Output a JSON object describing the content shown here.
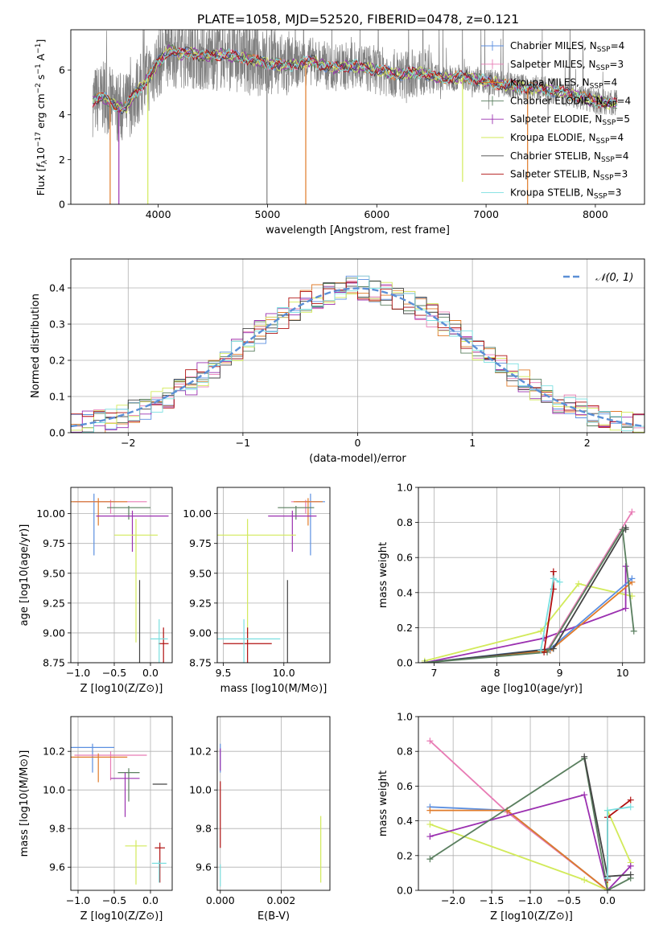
{
  "figure": {
    "title": "PLATE=1058, MJD=52520, FIBERID=0478, z=0.121"
  },
  "colors": {
    "chabrier_miles": "#5b8fe0",
    "salpeter_miles": "#e87cb5",
    "kroupa_miles": "#e07b2a",
    "chabrier_elodie": "#5a7f5f",
    "salpeter_elodie": "#9b30b0",
    "kroupa_elodie": "#d2ea5a",
    "chabrier_stelib": "#444444",
    "salpeter_stelib": "#b01010",
    "kroupa_stelib": "#7adfe0",
    "data": "#808080"
  },
  "chart_data": [
    {
      "id": "spectrum",
      "type": "line",
      "xlabel": "wavelength [Angstrom, rest frame]",
      "ylabel": "Flux [f_λ10^−17 erg cm^−2 s^−1 A^−1]",
      "xlim": [
        3200,
        8450
      ],
      "ylim": [
        0,
        7.8
      ],
      "xticks": [
        4000,
        5000,
        6000,
        7000,
        8000
      ],
      "yticks": [
        0,
        2,
        4,
        6
      ],
      "legend_position": "right",
      "legend": [
        {
          "key": "chabrier_miles",
          "label": "Chabrier MILES, N",
          "sub": "SSP",
          "suffix": "=4",
          "marker": "|"
        },
        {
          "key": "salpeter_miles",
          "label": "Salpeter MILES, N",
          "sub": "SSP",
          "suffix": "=3",
          "marker": "|"
        },
        {
          "key": "kroupa_miles",
          "label": "Kroupa MILES, N",
          "sub": "SSP",
          "suffix": "=4",
          "marker": "|"
        },
        {
          "key": "chabrier_elodie",
          "label": "Chabrier ELODIE, N",
          "sub": "SSP",
          "suffix": "=4",
          "marker": "|"
        },
        {
          "key": "salpeter_elodie",
          "label": "Salpeter ELODIE, N",
          "sub": "SSP",
          "suffix": "=5",
          "marker": "+"
        },
        {
          "key": "kroupa_elodie",
          "label": "Kroupa ELODIE, N",
          "sub": "SSP",
          "suffix": "=4",
          "marker": ""
        },
        {
          "key": "chabrier_stelib",
          "label": "Chabrier STELIB, N",
          "sub": "SSP",
          "suffix": "=4",
          "marker": ""
        },
        {
          "key": "salpeter_stelib",
          "label": "Salpeter STELIB, N",
          "sub": "SSP",
          "suffix": "=3",
          "marker": ""
        },
        {
          "key": "kroupa_stelib",
          "label": "Kroupa STELIB, N",
          "sub": "SSP",
          "suffix": "=3",
          "marker": ""
        }
      ],
      "continuum_model": {
        "x": [
          3400,
          3500,
          3600,
          3700,
          3800,
          3900,
          4000,
          4100,
          4200,
          4300,
          4400,
          4600,
          4800,
          5000,
          5200,
          5400,
          5600,
          5800,
          6000,
          6200,
          6400,
          6600,
          6800,
          7000,
          7200,
          7400,
          7600,
          7800,
          8000,
          8200
        ],
        "y": [
          4.6,
          4.8,
          4.4,
          4.3,
          5.0,
          5.6,
          6.3,
          6.9,
          6.7,
          6.8,
          6.6,
          6.7,
          6.5,
          6.3,
          6.2,
          6.4,
          6.1,
          6.2,
          6.0,
          5.8,
          5.9,
          5.6,
          5.7,
          5.5,
          5.3,
          5.2,
          5.1,
          4.9,
          4.6,
          4.5
        ]
      },
      "spikes_down": [
        {
          "x": 3560,
          "y": 0
        },
        {
          "x": 3640,
          "y": 0
        },
        {
          "x": 3905,
          "y": 0
        },
        {
          "x": 4995,
          "y": 0
        },
        {
          "x": 5350,
          "y": 0
        },
        {
          "x": 6785,
          "y": 1.0
        },
        {
          "x": 7380,
          "y": 0
        }
      ]
    },
    {
      "id": "residuals",
      "type": "line",
      "xlabel": "(data-model)/error",
      "ylabel": "Normed distribution",
      "xlim": [
        -2.5,
        2.5
      ],
      "ylim": [
        0,
        0.48
      ],
      "xticks": [
        -2,
        -1,
        0,
        1,
        2
      ],
      "yticks": [
        0.0,
        0.1,
        0.2,
        0.3,
        0.4
      ],
      "legend_position": "top-right",
      "gaussian_label": "𝒩(0, 1)",
      "gaussian": {
        "mean": 0,
        "sigma": 1
      }
    },
    {
      "id": "age_vs_Z",
      "type": "scatter",
      "xlabel": "Z [log10(Z/Z⊙)]",
      "ylabel": "age  [log10(age/yr)]",
      "xlim": [
        -1.1,
        0.3
      ],
      "ylim": [
        8.75,
        10.22
      ],
      "xticks": [
        -1.0,
        -0.5,
        0.0
      ],
      "xtick_labels": [
        "−1.0",
        "−0.5",
        "0.0"
      ],
      "yticks": [
        8.75,
        9.0,
        9.25,
        9.5,
        9.75,
        10.0
      ],
      "ytick_labels": [
        "8.75",
        "9.00",
        "9.25",
        "9.50",
        "9.75",
        "10.00"
      ],
      "points": [
        {
          "key": "chabrier_miles",
          "x": -0.78,
          "y": 10.1,
          "xerr": 0.3,
          "yerr": 0.45
        },
        {
          "key": "salpeter_miles",
          "x": -0.55,
          "y": 10.1,
          "xerr": 0.5,
          "yerr": 0.1
        },
        {
          "key": "kroupa_miles",
          "x": -0.72,
          "y": 10.1,
          "xerr": 0.4,
          "yerr": 0.2
        },
        {
          "key": "chabrier_elodie",
          "x": -0.3,
          "y": 10.05,
          "xerr": 0.3,
          "yerr": 0.1
        },
        {
          "key": "salpeter_elodie",
          "x": -0.25,
          "y": 9.98,
          "xerr": 0.5,
          "yerr": 0.3
        },
        {
          "key": "kroupa_elodie",
          "x": -0.2,
          "y": 9.82,
          "xerr": 0.3,
          "yerr": 0.9
        },
        {
          "key": "chabrier_stelib",
          "x": -0.15,
          "y": 9.3,
          "xerr": 0.0,
          "yerr": 0.95
        },
        {
          "key": "salpeter_stelib",
          "x": 0.18,
          "y": 8.91,
          "xerr": 0.07,
          "yerr": 0.9
        },
        {
          "key": "kroupa_stelib",
          "x": 0.12,
          "y": 8.95,
          "xerr": 0.12,
          "yerr": 1.1
        }
      ]
    },
    {
      "id": "age_vs_mass",
      "type": "scatter",
      "xlabel": "mass [log10(M/M⊙)]",
      "xlim": [
        9.45,
        10.38
      ],
      "ylim": [
        8.75,
        10.22
      ],
      "xticks": [
        9.5,
        10.0
      ],
      "xtick_labels": [
        "9.5",
        "10.0"
      ],
      "yticks": [
        8.75,
        9.0,
        9.25,
        9.5,
        9.75,
        10.0
      ],
      "ytick_labels": [
        "8.75",
        "9.00",
        "9.25",
        "9.50",
        "9.75",
        "10.00"
      ],
      "points": [
        {
          "key": "chabrier_miles",
          "x": 10.22,
          "y": 10.1,
          "xerr": 0.12,
          "yerr": 0.45
        },
        {
          "key": "salpeter_miles",
          "x": 10.18,
          "y": 10.1,
          "xerr": 0.12,
          "yerr": 0.1
        },
        {
          "key": "kroupa_miles",
          "x": 10.2,
          "y": 10.1,
          "xerr": 0.12,
          "yerr": 0.2
        },
        {
          "key": "chabrier_elodie",
          "x": 10.1,
          "y": 10.05,
          "xerr": 0.15,
          "yerr": 0.1
        },
        {
          "key": "salpeter_elodie",
          "x": 10.07,
          "y": 9.98,
          "xerr": 0.2,
          "yerr": 0.3
        },
        {
          "key": "kroupa_elodie",
          "x": 9.7,
          "y": 9.82,
          "xerr": 0.4,
          "yerr": 0.9
        },
        {
          "key": "chabrier_stelib",
          "x": 10.03,
          "y": 9.3,
          "xerr": 0.0,
          "yerr": 0.95
        },
        {
          "key": "salpeter_stelib",
          "x": 9.7,
          "y": 8.91,
          "xerr": 0.2,
          "yerr": 0.9
        },
        {
          "key": "kroupa_stelib",
          "x": 9.67,
          "y": 8.95,
          "xerr": 0.3,
          "yerr": 1.1
        }
      ]
    },
    {
      "id": "mass_vs_Z",
      "type": "scatter",
      "xlabel": "Z [log10(Z/Z⊙)]",
      "ylabel": "mass [log10(M/M⊙)]",
      "xlim": [
        -1.1,
        0.3
      ],
      "ylim": [
        9.48,
        10.38
      ],
      "xticks": [
        -1.0,
        -0.5,
        0.0
      ],
      "xtick_labels": [
        "−1.0",
        "−0.5",
        "0.0"
      ],
      "yticks": [
        9.6,
        9.8,
        10.0,
        10.2
      ],
      "ytick_labels": [
        "9.6",
        "9.8",
        "10.0",
        "10.2"
      ],
      "points": [
        {
          "key": "chabrier_miles",
          "x": -0.8,
          "y": 10.22,
          "xerr": 0.3,
          "yerr": 0.13
        },
        {
          "key": "salpeter_miles",
          "x": -0.55,
          "y": 10.18,
          "xerr": 0.5,
          "yerr": 0.13
        },
        {
          "key": "kroupa_miles",
          "x": -0.72,
          "y": 10.17,
          "xerr": 0.4,
          "yerr": 0.13
        },
        {
          "key": "chabrier_elodie",
          "x": -0.3,
          "y": 10.09,
          "xerr": 0.15,
          "yerr": 0.15
        },
        {
          "key": "salpeter_elodie",
          "x": -0.35,
          "y": 10.06,
          "xerr": 0.2,
          "yerr": 0.2
        },
        {
          "key": "kroupa_elodie",
          "x": -0.2,
          "y": 9.71,
          "xerr": 0.15,
          "yerr": 0.2
        },
        {
          "key": "chabrier_stelib",
          "x": 0.13,
          "y": 10.03,
          "xerr": 0.1,
          "yerr": 0.0
        },
        {
          "key": "salpeter_stelib",
          "x": 0.13,
          "y": 9.7,
          "xerr": 0.07,
          "yerr": 0.18
        },
        {
          "key": "kroupa_stelib",
          "x": 0.12,
          "y": 9.62,
          "xerr": 0.1,
          "yerr": 0.1
        }
      ]
    },
    {
      "id": "mass_vs_ebv",
      "type": "scatter",
      "xlabel": "E(B-V)",
      "xlim": [
        -0.0001,
        0.0036
      ],
      "ylim": [
        9.48,
        10.38
      ],
      "xticks": [
        0.0,
        0.002
      ],
      "xtick_labels": [
        "0.000",
        "0.002"
      ],
      "yticks": [
        9.6,
        9.8,
        10.0,
        10.2
      ],
      "ytick_labels": [
        "9.6",
        "9.8",
        "10.0",
        "10.2"
      ],
      "points": [
        {
          "key": "chabrier_miles",
          "x": 0.0,
          "y": 10.22,
          "xerr": 0,
          "yerr": 0.13
        },
        {
          "key": "salpeter_elodie",
          "x": 0.0,
          "y": 10.2,
          "xerr": 0,
          "yerr": 0.1
        },
        {
          "key": "salpeter_stelib",
          "x": 0.0,
          "y": 10.0,
          "xerr": 0,
          "yerr": 0.3
        },
        {
          "key": "kroupa_stelib",
          "x": 0.0,
          "y": 9.6,
          "xerr": 0,
          "yerr": 0.1
        },
        {
          "key": "kroupa_elodie",
          "x": 0.0033,
          "y": 9.82,
          "xerr": 0,
          "yerr": 0.3
        }
      ]
    },
    {
      "id": "weight_vs_age",
      "type": "line",
      "xlabel": "age  [log10(age/yr)]",
      "ylabel": "mass weight",
      "xlim": [
        6.75,
        10.35
      ],
      "ylim": [
        0,
        1.0
      ],
      "xticks": [
        7,
        8,
        9,
        10
      ],
      "yticks": [
        0.0,
        0.2,
        0.4,
        0.6,
        0.8,
        1.0
      ],
      "series": [
        {
          "key": "kroupa_elodie",
          "x": [
            6.85,
            8.7,
            9.3,
            10.15
          ],
          "y": [
            0.01,
            0.18,
            0.45,
            0.38
          ]
        },
        {
          "key": "salpeter_elodie",
          "x": [
            6.85,
            8.75,
            10.05,
            10.05
          ],
          "y": [
            0.0,
            0.14,
            0.31,
            0.55
          ]
        },
        {
          "key": "salpeter_miles",
          "x": [
            6.85,
            8.8,
            10.15
          ],
          "y": [
            0.0,
            0.07,
            0.86
          ]
        },
        {
          "key": "kroupa_miles",
          "x": [
            6.85,
            8.85,
            10.15
          ],
          "y": [
            0.0,
            0.07,
            0.46
          ]
        },
        {
          "key": "chabrier_miles",
          "x": [
            6.85,
            8.85,
            10.15
          ],
          "y": [
            0.0,
            0.08,
            0.48
          ]
        },
        {
          "key": "chabrier_stelib",
          "x": [
            6.85,
            8.9,
            10.05,
            10.05
          ],
          "y": [
            0.0,
            0.08,
            0.77,
            0.76
          ]
        },
        {
          "key": "chabrier_elodie",
          "x": [
            6.85,
            8.8,
            10.0,
            10.18
          ],
          "y": [
            0.0,
            0.06,
            0.76,
            0.18
          ]
        },
        {
          "key": "salpeter_stelib",
          "x": [
            8.75,
            8.9,
            8.9
          ],
          "y": [
            0.06,
            0.42,
            0.52
          ]
        },
        {
          "key": "kroupa_stelib",
          "x": [
            8.7,
            8.9,
            9.0
          ],
          "y": [
            0.07,
            0.48,
            0.46
          ]
        }
      ]
    },
    {
      "id": "weight_vs_Z",
      "type": "line",
      "xlabel": "Z [log10(Z/Z⊙)]",
      "ylabel": "mass weight",
      "xlim": [
        -2.45,
        0.48
      ],
      "ylim": [
        0,
        1.0
      ],
      "xticks": [
        -2.0,
        -1.5,
        -1.0,
        -0.5,
        0.0
      ],
      "xtick_labels": [
        "−2.0",
        "−1.5",
        "−1.0",
        "−0.5",
        "0.0"
      ],
      "yticks": [
        0.0,
        0.2,
        0.4,
        0.6,
        0.8,
        1.0
      ],
      "series": [
        {
          "key": "salpeter_miles",
          "x": [
            -2.3,
            -1.3,
            0.0
          ],
          "y": [
            0.86,
            0.45,
            0.0
          ]
        },
        {
          "key": "chabrier_miles",
          "x": [
            -2.3,
            -1.3,
            0.0
          ],
          "y": [
            0.48,
            0.46,
            0.0
          ]
        },
        {
          "key": "kroupa_miles",
          "x": [
            -2.3,
            -1.3,
            0.0
          ],
          "y": [
            0.46,
            0.46,
            0.0
          ]
        },
        {
          "key": "kroupa_elodie",
          "x": [
            -2.3,
            -0.3,
            0.0,
            0.0,
            0.3
          ],
          "y": [
            0.38,
            0.06,
            0.0,
            0.46,
            0.16
          ]
        },
        {
          "key": "salpeter_elodie",
          "x": [
            -2.3,
            -0.3,
            0.0,
            0.3
          ],
          "y": [
            0.31,
            0.55,
            0.0,
            0.14
          ]
        },
        {
          "key": "chabrier_elodie",
          "x": [
            -2.3,
            -0.3,
            0.0,
            0.3
          ],
          "y": [
            0.18,
            0.76,
            0.0,
            0.07
          ]
        },
        {
          "key": "chabrier_stelib",
          "x": [
            -0.3,
            0.0,
            0.3
          ],
          "y": [
            0.77,
            0.08,
            0.09
          ]
        },
        {
          "key": "salpeter_stelib",
          "x": [
            0.0,
            0.0,
            0.3
          ],
          "y": [
            0.06,
            0.42,
            0.52
          ]
        },
        {
          "key": "kroupa_stelib",
          "x": [
            0.0,
            0.0,
            0.3
          ],
          "y": [
            0.07,
            0.46,
            0.48
          ]
        }
      ]
    }
  ]
}
